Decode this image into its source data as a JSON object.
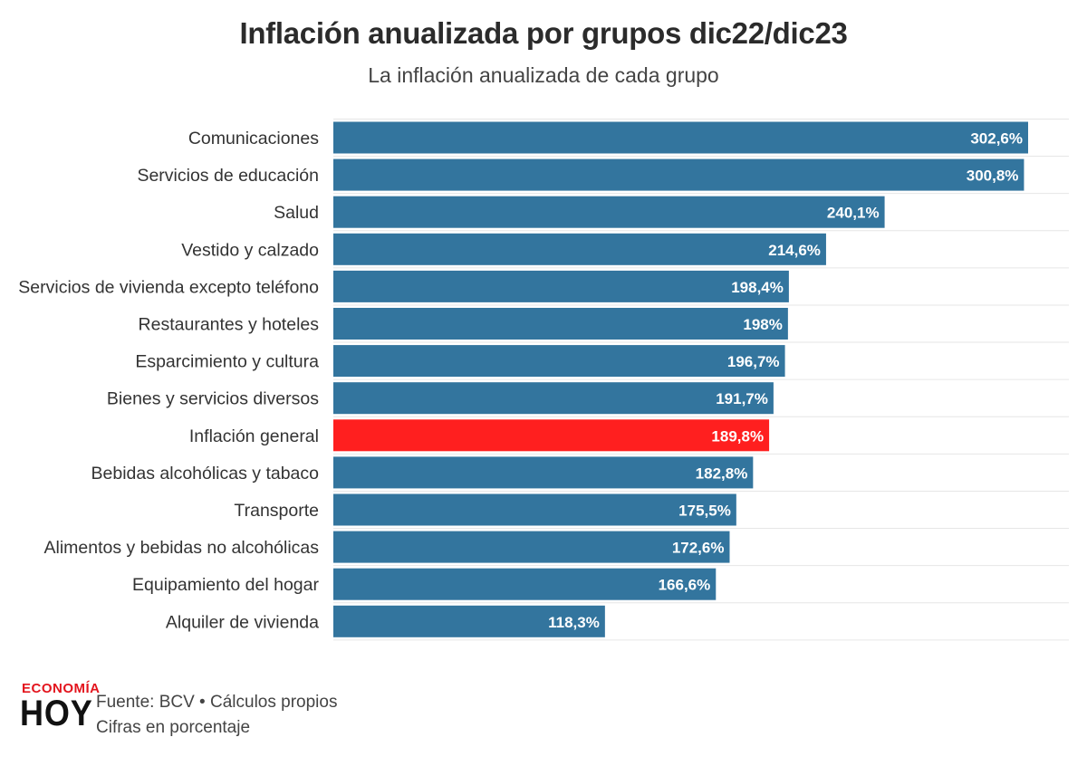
{
  "header": {
    "title": "Inflación anualizada por grupos dic22/dic23",
    "subtitle": "La inflación anualizada de cada grupo"
  },
  "footer": {
    "logo_top": "ECONOMÍA",
    "logo_bottom": "HOY",
    "source_line": "Fuente: BCV • Cálculos propios",
    "unit_line": "Cifras en porcentaje"
  },
  "colors": {
    "bar": "#33759e",
    "highlight": "#ff1f1f",
    "label_text": "#ffffff",
    "category_text": "#333333",
    "gridline": "#e6e6e6",
    "logo_accent": "#e3141d"
  },
  "chart_data": {
    "type": "bar",
    "orientation": "horizontal",
    "title": "Inflación anualizada por grupos dic22/dic23",
    "subtitle": "La inflación anualizada de cada grupo",
    "xlabel": "",
    "ylabel": "",
    "grid": true,
    "xlim": [
      0,
      310
    ],
    "highlight_category": "Inflación general",
    "categories": [
      "Comunicaciones",
      "Servicios de educación",
      "Salud",
      "Vestido y calzado",
      "Servicios de vivienda excepto teléfono",
      "Restaurantes y hoteles",
      "Esparcimiento y cultura",
      "Bienes y servicios diversos",
      "Inflación general",
      "Bebidas alcohólicas y tabaco",
      "Transporte",
      "Alimentos y bebidas no alcohólicas",
      "Equipamiento del hogar",
      "Alquiler de vivienda"
    ],
    "values": [
      302.6,
      300.8,
      240.1,
      214.6,
      198.4,
      198,
      196.7,
      191.7,
      189.8,
      182.8,
      175.5,
      172.6,
      166.6,
      118.3
    ],
    "labels": [
      "302,6%",
      "300,8%",
      "240,1%",
      "214,6%",
      "198,4%",
      "198%",
      "196,7%",
      "191,7%",
      "189,8%",
      "182,8%",
      "175,5%",
      "172,6%",
      "166,6%",
      "118,3%"
    ]
  }
}
